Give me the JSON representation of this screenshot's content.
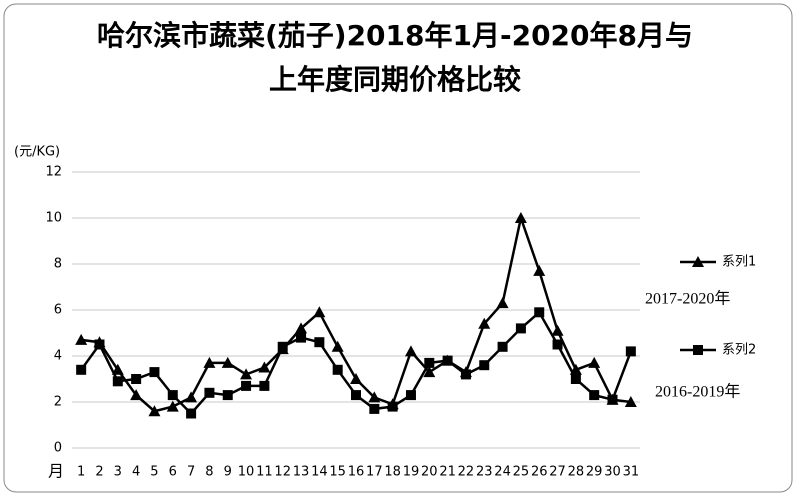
{
  "chart_data": {
    "type": "line",
    "title": "哈尔滨市蔬菜(茄子)2018年1月-2020年8月与上年度同期价格比较",
    "y_label": "(元/KG)",
    "x_label": "月",
    "categories": [
      "1",
      "2",
      "3",
      "4",
      "5",
      "6",
      "7",
      "8",
      "9",
      "10",
      "11",
      "12",
      "13",
      "14",
      "15",
      "16",
      "17",
      "18",
      "19",
      "20",
      "21",
      "22",
      "23",
      "24",
      "25",
      "26",
      "27",
      "28",
      "29",
      "30",
      "31"
    ],
    "series": [
      {
        "name": "系列1",
        "color": "#000000",
        "marker": "triangle",
        "values": [
          4.7,
          4.6,
          3.4,
          2.3,
          1.6,
          1.8,
          2.2,
          3.7,
          3.7,
          3.2,
          3.5,
          4.3,
          5.2,
          5.9,
          4.4,
          3.0,
          2.2,
          1.9,
          4.2,
          3.3,
          3.8,
          3.3,
          5.4,
          6.3,
          10.0,
          7.7,
          5.1,
          3.4,
          3.7,
          2.1,
          2.0
        ]
      },
      {
        "name": "系列2",
        "color": "#000000",
        "marker": "square",
        "values": [
          3.4,
          4.5,
          2.9,
          3.0,
          3.3,
          2.3,
          1.5,
          2.4,
          2.3,
          2.7,
          2.7,
          4.4,
          4.8,
          4.6,
          3.4,
          2.3,
          1.7,
          1.8,
          2.3,
          3.7,
          3.8,
          3.2,
          3.6,
          4.4,
          5.2,
          5.9,
          4.5,
          3.0,
          2.3,
          2.1,
          4.2
        ]
      }
    ],
    "annotations": [
      "2017-2020年",
      "2016-2019年"
    ],
    "ylim": [
      0,
      12
    ],
    "yticks": [
      0,
      2,
      4,
      6,
      8,
      10,
      12
    ],
    "grid": true
  }
}
